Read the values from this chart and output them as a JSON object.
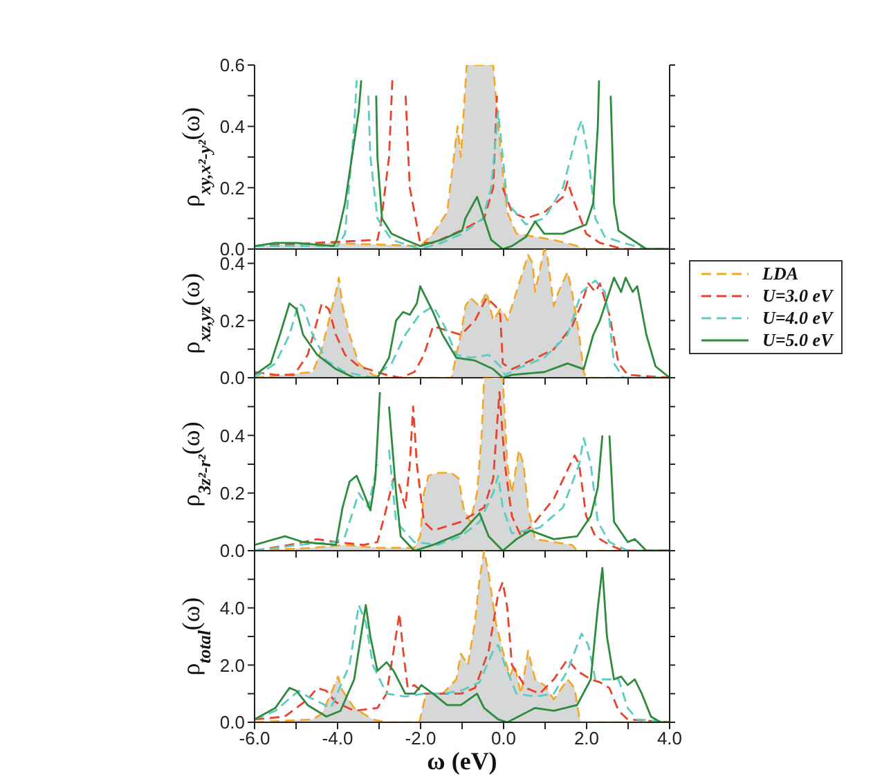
{
  "chart_data": [
    {
      "type": "line",
      "ylabel": "ρ$_{xy,x²-y²}$(ω)",
      "xlim": [
        -6,
        4
      ],
      "xticks": [
        {
          "value": -6,
          "label": null
        },
        {
          "value": -5,
          "label": null
        },
        {
          "value": -4,
          "label": null
        },
        {
          "value": -3,
          "label": null
        },
        {
          "value": -2,
          "label": null
        },
        {
          "value": -1,
          "label": null
        },
        {
          "value": 0,
          "label": null
        },
        {
          "value": 1,
          "label": null
        },
        {
          "value": 2,
          "label": null
        },
        {
          "value": 3,
          "label": null
        },
        {
          "value": 4,
          "label": null
        }
      ],
      "ylim": [
        0,
        0.6
      ],
      "yticks": [
        {
          "value": 0,
          "label": "0.0"
        },
        {
          "value": 0.1,
          "label": null
        },
        {
          "value": 0.2,
          "label": "0.2"
        },
        {
          "value": 0.3,
          "label": null
        },
        {
          "value": 0.4,
          "label": "0.4"
        },
        {
          "value": 0.5,
          "label": null
        },
        {
          "value": 0.6,
          "label": "0.6"
        }
      ],
      "tick_labels": "y",
      "series": [
        {
          "type": "area",
          "color": "#f5a623",
          "line_style": "dashed",
          "x": [
            -6,
            -4.2,
            -2.01,
            -1.7,
            -1.36,
            -1.11,
            -1.03,
            -0.89,
            -0.25,
            -0.16,
            -0.02,
            0.09,
            0.31,
            0.76,
            1.21,
            1.77,
            1.99,
            4
          ],
          "values": [
            0.01,
            0.02,
            0.01,
            0.05,
            0.12,
            0.4,
            0.3,
            0.6,
            0.6,
            0.45,
            0.25,
            0.12,
            0.05,
            0.04,
            0.03,
            0.01,
            0,
            0
          ]
        },
        {
          "color": "#e8412c",
          "line_style": "dashed",
          "x": [
            -6,
            -3.04,
            -2.96,
            -2.76,
            -2.68,
            -2.55,
            -2.36,
            -2.26,
            -2.01,
            -1.7,
            -1.03,
            -0.47,
            -0.25,
            -0.16,
            -0.08,
            -0.02,
            0.2,
            0.54,
            0.98,
            1.43,
            1.54,
            1.71,
            1.99,
            2.32,
            2.88,
            4
          ],
          "values": [
            0.01,
            0.03,
            0.08,
            0.3,
            0.55,
            null,
            0.5,
            0.2,
            0.02,
            0.02,
            0.06,
            0.1,
            0.2,
            0.5,
            null,
            0.2,
            0.12,
            0.1,
            0.12,
            0.17,
            0.22,
            0.15,
            0.05,
            0.02,
            0,
            0
          ]
        },
        {
          "color": "#5ccbc0",
          "line_style": "dashed",
          "x": [
            -6,
            -4.0,
            -3.82,
            -3.6,
            -3.54,
            -3.4,
            -3.26,
            -3.21,
            -3.04,
            -2.7,
            -2.01,
            -1.5,
            -1.0,
            -0.5,
            -0.3,
            -0.13,
            0.09,
            0.54,
            0.98,
            1.43,
            1.77,
            1.88,
            2.04,
            2.21,
            2.44,
            2.88,
            3.44,
            4
          ],
          "values": [
            0.01,
            0.01,
            0.05,
            0.4,
            0.55,
            null,
            0.5,
            0.3,
            0.1,
            0.03,
            0,
            0.02,
            0.05,
            0.1,
            0.2,
            0.45,
            0.15,
            0.08,
            0.1,
            0.2,
            0.38,
            0.42,
            0.3,
            0.1,
            0.04,
            0.02,
            0,
            0
          ]
        },
        {
          "color": "#2e8b3e",
          "line_style": "solid",
          "x": [
            -6,
            -5.5,
            -4.99,
            -4.1,
            -4.02,
            -3.82,
            -3.6,
            -3.49,
            -3.43,
            -3.2,
            -3.07,
            -3.04,
            -2.93,
            -2.7,
            -2.37,
            -2.01,
            -1.5,
            -1.0,
            -0.92,
            -0.64,
            -0.47,
            -0.3,
            -0.02,
            0.2,
            0.54,
            0.76,
            0.98,
            1.43,
            1.99,
            2.16,
            2.27,
            2.3,
            2.45,
            2.58,
            2.66,
            2.77,
            2.99,
            3.44,
            4
          ],
          "values": [
            0.01,
            0.02,
            0.02,
            0.01,
            0.03,
            0.15,
            0.35,
            0.45,
            0.55,
            null,
            0.5,
            0.3,
            0.1,
            0.05,
            0.03,
            0.01,
            0.03,
            0.06,
            0.1,
            0.17,
            0.1,
            0.03,
            0,
            0.01,
            0.04,
            0.09,
            0.05,
            0.05,
            0.08,
            0.15,
            0.4,
            0.55,
            null,
            0.5,
            0.15,
            0.06,
            0.04,
            0,
            0
          ]
        }
      ]
    },
    {
      "type": "line",
      "ylabel": "ρ$_{xz,yz}$(ω)",
      "xlim": [
        -6,
        4
      ],
      "xticks": [
        {
          "value": -6,
          "label": null
        },
        {
          "value": -5,
          "label": null
        },
        {
          "value": -4,
          "label": null
        },
        {
          "value": -3,
          "label": null
        },
        {
          "value": -2,
          "label": null
        },
        {
          "value": -1,
          "label": null
        },
        {
          "value": 0,
          "label": null
        },
        {
          "value": 1,
          "label": null
        },
        {
          "value": 2,
          "label": null
        },
        {
          "value": 3,
          "label": null
        },
        {
          "value": 4,
          "label": null
        }
      ],
      "ylim": [
        0,
        0.45
      ],
      "yticks": [
        {
          "value": 0,
          "label": "0.0"
        },
        {
          "value": 0.1,
          "label": null
        },
        {
          "value": 0.2,
          "label": "0.2"
        },
        {
          "value": 0.3,
          "label": null
        },
        {
          "value": 0.4,
          "label": "0.4"
        }
      ],
      "tick_labels": "y",
      "legend": "right",
      "series": [
        {
          "name": "LDA",
          "type": "area",
          "color": "#f5a623",
          "line_style": "dashed",
          "x": [
            -6,
            -4.6,
            -4.38,
            -4.21,
            -4.04,
            -3.97,
            -3.88,
            -3.71,
            -3.49,
            -3.15,
            -2.93,
            -1.25,
            -1.14,
            -1.03,
            -0.92,
            -0.8,
            -0.58,
            -0.41,
            -0.25,
            -0.08,
            0.03,
            0.09,
            0.31,
            0.59,
            0.7,
            0.76,
            0.98,
            1.04,
            1.21,
            1.32,
            1.54,
            1.65,
            1.82,
            1.93,
            1.99,
            4
          ],
          "values": [
            0,
            0.02,
            0.1,
            0.2,
            0.3,
            0.35,
            0.25,
            0.15,
            0.05,
            0.01,
            0,
            0,
            0.08,
            0.15,
            0.25,
            0.28,
            0.25,
            0.3,
            0.2,
            0.24,
            0.22,
            0.2,
            0.3,
            0.43,
            0.4,
            0.3,
            0.45,
            0.44,
            0.25,
            0.3,
            0.37,
            0.3,
            0.15,
            0.02,
            0,
            0
          ]
        },
        {
          "name": "U=3.0 eV",
          "color": "#e8412c",
          "line_style": "dashed",
          "x": [
            -6,
            -5.5,
            -5.05,
            -4.72,
            -4.49,
            -4.38,
            -4.21,
            -4.04,
            -3.82,
            -3.49,
            -2.82,
            -2.48,
            -2.15,
            -1.92,
            -1.7,
            -1.47,
            -1.03,
            -0.69,
            -0.41,
            -0.19,
            -0.08,
            -0.02,
            0.2,
            0.65,
            1.21,
            1.65,
            1.88,
            2.04,
            2.21,
            2.32,
            2.55,
            2.77,
            2.99,
            4
          ],
          "values": [
            0.02,
            0.01,
            0.01,
            0.08,
            0.2,
            0.26,
            0.24,
            0.15,
            0.08,
            0.04,
            0.01,
            0,
            0.02,
            0.08,
            0.18,
            0.17,
            0.15,
            0.2,
            0.28,
            0.25,
            0.22,
            0.05,
            0.03,
            0.06,
            0.1,
            0.18,
            0.26,
            0.33,
            0.3,
            0.33,
            0.22,
            0.05,
            0.01,
            0
          ]
        },
        {
          "name": "U=4.0 eV",
          "color": "#5ccbc0",
          "line_style": "dashed",
          "x": [
            -6,
            -5.5,
            -5.16,
            -4.94,
            -4.83,
            -4.6,
            -4.27,
            -3.82,
            -3.15,
            -2.7,
            -2.37,
            -2.03,
            -1.7,
            -1.42,
            -1.14,
            -0.8,
            -0.36,
            -0.08,
            0.03,
            0.31,
            0.98,
            1.54,
            1.88,
            2.21,
            2.44,
            2.55,
            2.66,
            2.88,
            4
          ],
          "values": [
            0,
            0.05,
            0.15,
            0.26,
            0.25,
            0.15,
            0.06,
            0.02,
            0,
            0.05,
            0.15,
            0.22,
            0.25,
            0.18,
            0.08,
            0.07,
            0.08,
            0.04,
            0.01,
            0.03,
            0.07,
            0.15,
            0.3,
            0.34,
            0.3,
            0.2,
            0.05,
            0,
            0
          ]
        },
        {
          "name": "U=5.0 eV",
          "color": "#2e8b3e",
          "line_style": "solid",
          "x": [
            -6,
            -5.61,
            -5.39,
            -5.16,
            -4.99,
            -4.83,
            -4.49,
            -4.04,
            -3.6,
            -3.04,
            -2.76,
            -2.59,
            -2.42,
            -2.26,
            -2.09,
            -2.01,
            -1.87,
            -1.7,
            -1.47,
            -1.14,
            -0.69,
            -0.25,
            -0.02,
            0.2,
            0.98,
            1.54,
            1.93,
            2.16,
            2.32,
            2.66,
            2.83,
            2.94,
            3.11,
            3.22,
            3.44,
            3.66,
            4
          ],
          "values": [
            0.01,
            0.05,
            0.15,
            0.26,
            0.24,
            0.15,
            0.08,
            0.03,
            0,
            0,
            0.07,
            0.2,
            0.23,
            0.22,
            0.26,
            0.32,
            0.28,
            0.23,
            0.15,
            0.07,
            0.06,
            0.03,
            0,
            0.01,
            0.02,
            0.05,
            0.03,
            0.15,
            0.2,
            0.35,
            0.3,
            0.35,
            0.3,
            0.32,
            0.15,
            0.04,
            0
          ]
        }
      ]
    },
    {
      "type": "line",
      "ylabel": "ρ$_{3z²-r²}$(ω)",
      "xlim": [
        -6,
        4
      ],
      "xticks": [
        {
          "value": -6,
          "label": null
        },
        {
          "value": -5,
          "label": null
        },
        {
          "value": -4,
          "label": null
        },
        {
          "value": -3,
          "label": null
        },
        {
          "value": -2,
          "label": null
        },
        {
          "value": -1,
          "label": null
        },
        {
          "value": 0,
          "label": null
        },
        {
          "value": 1,
          "label": null
        },
        {
          "value": 2,
          "label": null
        },
        {
          "value": 3,
          "label": null
        },
        {
          "value": 4,
          "label": null
        }
      ],
      "ylim": [
        0,
        0.6
      ],
      "yticks": [
        {
          "value": 0,
          "label": "0.0"
        },
        {
          "value": 0.1,
          "label": null
        },
        {
          "value": 0.2,
          "label": "0.2"
        },
        {
          "value": 0.3,
          "label": null
        },
        {
          "value": 0.4,
          "label": "0.4"
        },
        {
          "value": 0.5,
          "label": null
        },
        {
          "value": 0.6,
          "label": null
        }
      ],
      "tick_labels": "y",
      "series": [
        {
          "type": "area",
          "color": "#f5a623",
          "line_style": "dashed",
          "x": [
            -6,
            -4.6,
            -3.82,
            -3.04,
            -2.15,
            -2.01,
            -1.92,
            -1.81,
            -1.59,
            -1.25,
            -1.08,
            -0.97,
            -0.8,
            -0.64,
            -0.53,
            -0.47,
            -0.02,
            0.09,
            0.2,
            0.37,
            0.48,
            0.59,
            0.76,
            1.21,
            1.65,
            1.77,
            4
          ],
          "values": [
            0,
            0.01,
            0.02,
            0.01,
            0.01,
            0.05,
            0.2,
            0.26,
            0.27,
            0.27,
            0.25,
            0.15,
            0.1,
            0.2,
            0.4,
            0.6,
            0.6,
            0.3,
            0.2,
            0.35,
            0.3,
            0.15,
            0.04,
            0.03,
            0.02,
            0,
            0
          ]
        },
        {
          "color": "#e8412c",
          "line_style": "dashed",
          "x": [
            -6,
            -5.16,
            -4.49,
            -4.04,
            -3.37,
            -3.04,
            -2.87,
            -2.65,
            -2.54,
            -2.37,
            -2.26,
            -2.18,
            -2.09,
            -1.92,
            -1.7,
            -1.03,
            -0.47,
            -0.25,
            -0.1,
            0.03,
            0.2,
            0.42,
            0.76,
            1.21,
            1.54,
            1.71,
            1.82,
            1.99,
            2.21,
            2.55,
            2.88,
            4
          ],
          "values": [
            0,
            0.02,
            0.04,
            0.03,
            0.02,
            0.03,
            0.12,
            0.25,
            0.24,
            0.15,
            0.3,
            0.5,
            0.3,
            0.1,
            0.07,
            0.1,
            0.15,
            0.25,
            0.55,
            0.3,
            0.12,
            0.05,
            0.1,
            0.18,
            0.28,
            0.33,
            0.3,
            0.12,
            0.05,
            0.02,
            0,
            0
          ]
        },
        {
          "color": "#5ccbc0",
          "line_style": "dashed",
          "x": [
            -6,
            -4.94,
            -4.04,
            -3.82,
            -3.49,
            -3.26,
            -3.04,
            -2.87,
            -2.76,
            -2.59,
            -2.15,
            -1.59,
            -1.03,
            -0.58,
            -0.25,
            -0.13,
            -0.02,
            0.2,
            0.87,
            1.43,
            1.82,
            1.93,
            2.1,
            2.27,
            2.55,
            2.99,
            4
          ],
          "values": [
            0,
            0.02,
            0.03,
            0.05,
            0.2,
            0.15,
            0.3,
            null,
            0.35,
            0.1,
            0.03,
            0.02,
            0.05,
            0.1,
            0.2,
            0.26,
            0.15,
            0.06,
            0.08,
            0.15,
            0.3,
            0.39,
            0.3,
            0.1,
            0.03,
            0,
            0
          ]
        },
        {
          "color": "#2e8b3e",
          "line_style": "solid",
          "x": [
            -6,
            -5.27,
            -4.83,
            -4.04,
            -3.88,
            -3.71,
            -3.54,
            -3.37,
            -3.21,
            -3.09,
            -2.98,
            -2.87,
            -2.76,
            -2.59,
            -2.48,
            -2.15,
            -1.7,
            -1.03,
            -0.58,
            -0.36,
            -0.02,
            0.31,
            0.65,
            1.21,
            1.77,
            2.1,
            2.27,
            2.38,
            2.44,
            2.55,
            2.66,
            2.99,
            3.16,
            3.44,
            4
          ],
          "values": [
            0.02,
            0.05,
            0.03,
            0.02,
            0.15,
            0.24,
            0.26,
            0.2,
            0.14,
            0.25,
            0.55,
            null,
            0.5,
            0.2,
            0.05,
            0,
            0.02,
            0.06,
            0.13,
            0.05,
            0,
            0.04,
            0.07,
            0.04,
            0.05,
            0.12,
            0.22,
            0.4,
            null,
            0.4,
            0.1,
            0.03,
            0.04,
            0,
            0
          ]
        }
      ]
    },
    {
      "type": "line",
      "ylabel": "ρ$_{total}$(ω)",
      "xlabel": "ω (eV)",
      "xlim": [
        -6,
        4
      ],
      "xticks": [
        {
          "value": -6,
          "label": "-6.0"
        },
        {
          "value": -5,
          "label": null
        },
        {
          "value": -4,
          "label": "-4.0"
        },
        {
          "value": -3,
          "label": null
        },
        {
          "value": -2,
          "label": "-2.0"
        },
        {
          "value": -1,
          "label": null
        },
        {
          "value": 0,
          "label": "0.0"
        },
        {
          "value": 1,
          "label": null
        },
        {
          "value": 2,
          "label": "2.0"
        },
        {
          "value": 3,
          "label": null
        },
        {
          "value": 4,
          "label": "4.0"
        }
      ],
      "ylim": [
        0,
        6
      ],
      "yticks": [
        {
          "value": 0,
          "label": "0.0"
        },
        {
          "value": 1,
          "label": null
        },
        {
          "value": 2,
          "label": "2.0"
        },
        {
          "value": 3,
          "label": null
        },
        {
          "value": 4,
          "label": "4.0"
        },
        {
          "value": 5,
          "label": null
        },
        {
          "value": 6,
          "label": null
        }
      ],
      "series": [
        {
          "type": "area",
          "color": "#f5a623",
          "line_style": "dashed",
          "x": [
            -6,
            -4.6,
            -4.38,
            -4.16,
            -3.99,
            -3.88,
            -3.6,
            -3.15,
            -2.82,
            -2.03,
            -1.87,
            -1.47,
            -1.14,
            -1.03,
            -0.86,
            -0.69,
            -0.58,
            -0.47,
            -0.36,
            -0.19,
            -0.02,
            0.15,
            0.26,
            0.42,
            0.59,
            0.76,
            0.98,
            1.21,
            1.54,
            1.71,
            1.82,
            1.88,
            4
          ],
          "values": [
            0,
            0.1,
            0.3,
            1.0,
            1.6,
            1.1,
            0.5,
            0.1,
            0,
            0,
            1.0,
            1.0,
            1.5,
            2.4,
            2.0,
            3.5,
            5.0,
            6.0,
            5.2,
            3.5,
            2.5,
            1.6,
            2.0,
            1.0,
            2.5,
            1.5,
            1.3,
            0.8,
            1.5,
            1.2,
            0.2,
            0,
            0
          ]
        },
        {
          "color": "#e8412c",
          "line_style": "dashed",
          "x": [
            -6,
            -5.27,
            -4.72,
            -4.49,
            -4.27,
            -4.04,
            -3.6,
            -3.04,
            -2.82,
            -2.65,
            -2.51,
            -2.42,
            -2.31,
            -2.15,
            -1.92,
            -1.59,
            -1.03,
            -0.69,
            -0.36,
            -0.13,
            -0.02,
            0.09,
            0.2,
            0.54,
            0.87,
            1.21,
            1.54,
            1.77,
            2.1,
            2.32,
            2.55,
            2.77,
            2.99,
            4
          ],
          "values": [
            0.1,
            0.2,
            0.8,
            1.2,
            1.1,
            0.7,
            0.4,
            0.5,
            1.0,
            2.5,
            3.8,
            2.5,
            1.2,
            1.3,
            1.0,
            1.0,
            1.0,
            1.2,
            2.5,
            4.5,
            4.9,
            4.0,
            2.0,
            1.2,
            1.0,
            1.5,
            2.2,
            1.8,
            1.5,
            1.4,
            1.2,
            0.4,
            0.1,
            0
          ]
        },
        {
          "color": "#5ccbc0",
          "line_style": "dashed",
          "x": [
            -6,
            -5.5,
            -4.94,
            -4.72,
            -4.16,
            -3.71,
            -3.49,
            -3.32,
            -3.15,
            -2.82,
            -2.37,
            -1.92,
            -1.47,
            -1.03,
            -0.58,
            -0.25,
            -0.13,
            0.03,
            0.31,
            0.76,
            1.21,
            1.54,
            1.88,
            2.04,
            2.21,
            2.55,
            2.77,
            2.99,
            3.22,
            4
          ],
          "values": [
            0.1,
            0.4,
            1.1,
            0.9,
            0.5,
            2.0,
            4.1,
            3.5,
            2.0,
            1.0,
            0.9,
            1.0,
            1.0,
            1.1,
            1.4,
            2.5,
            2.7,
            2.0,
            1.0,
            0.9,
            1.0,
            1.8,
            3.1,
            2.7,
            1.5,
            1.5,
            1.5,
            0.5,
            0.1,
            0
          ]
        },
        {
          "color": "#2e8b3e",
          "line_style": "solid",
          "x": [
            -6,
            -5.5,
            -5.16,
            -4.99,
            -4.72,
            -4.27,
            -3.93,
            -3.6,
            -3.32,
            -3.21,
            -3.04,
            -2.82,
            -2.65,
            -2.37,
            -2.15,
            -1.98,
            -1.7,
            -1.36,
            -1.03,
            -0.64,
            -0.47,
            -0.13,
            0.09,
            0.76,
            1.21,
            1.77,
            2.1,
            2.27,
            2.38,
            2.49,
            2.66,
            2.83,
            2.99,
            3.16,
            3.33,
            3.55,
            3.78,
            4
          ],
          "values": [
            0.1,
            0.5,
            1.2,
            1.1,
            0.6,
            0.2,
            0.4,
            1.5,
            4.1,
            3.0,
            1.8,
            2.1,
            1.8,
            1.0,
            1.0,
            1.3,
            1.0,
            0.6,
            0.6,
            1.0,
            0.5,
            0.1,
            0,
            0.5,
            0.4,
            0.6,
            1.5,
            4.0,
            5.4,
            3.0,
            1.5,
            1.6,
            1.3,
            1.5,
            1.0,
            0.2,
            0,
            0
          ]
        }
      ]
    }
  ]
}
